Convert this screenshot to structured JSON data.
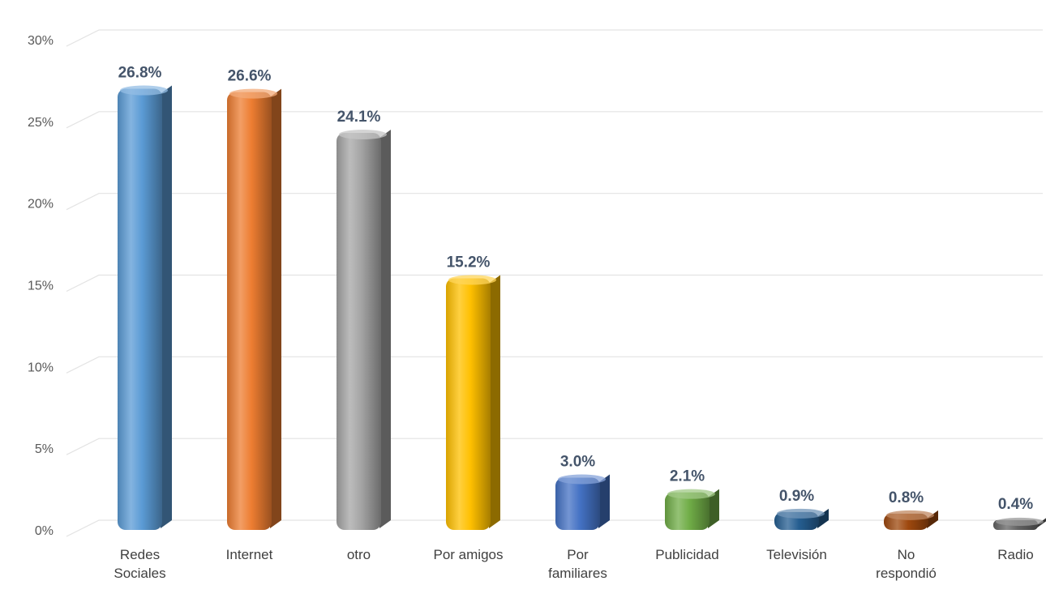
{
  "chart_data": {
    "type": "bar",
    "title": "",
    "xlabel": "",
    "ylabel": "",
    "categories": [
      "Redes Sociales",
      "Internet",
      "otro",
      "Por amigos",
      "Por familiares",
      "Publicidad",
      "Televisión",
      "No respondió",
      "Radio"
    ],
    "values": [
      26.8,
      26.6,
      24.1,
      15.2,
      3.0,
      2.1,
      0.9,
      0.8,
      0.4
    ],
    "data_labels": [
      "26.8%",
      "26.6%",
      "24.1%",
      "15.2%",
      "3.0%",
      "2.1%",
      "0.9%",
      "0.8%",
      "0.4%"
    ],
    "category_lines": [
      [
        "Redes",
        "Sociales"
      ],
      [
        "Internet"
      ],
      [
        "otro"
      ],
      [
        "Por amigos"
      ],
      [
        "Por",
        "familiares"
      ],
      [
        "Publicidad"
      ],
      [
        "Televisión"
      ],
      [
        "No",
        "respondió"
      ],
      [
        "Radio"
      ]
    ],
    "y_ticks": [
      0,
      5,
      10,
      15,
      20,
      25,
      30
    ],
    "y_tick_labels": [
      "0%",
      "5%",
      "10%",
      "15%",
      "20%",
      "25%",
      "30%"
    ],
    "ylim": [
      0,
      30
    ],
    "grid": true,
    "legend": "none",
    "colors": [
      "#5b9bd5",
      "#ed7d31",
      "#a5a5a5",
      "#ffc000",
      "#4472c4",
      "#70ad47",
      "#255e91",
      "#9e480e",
      "#636363"
    ]
  }
}
